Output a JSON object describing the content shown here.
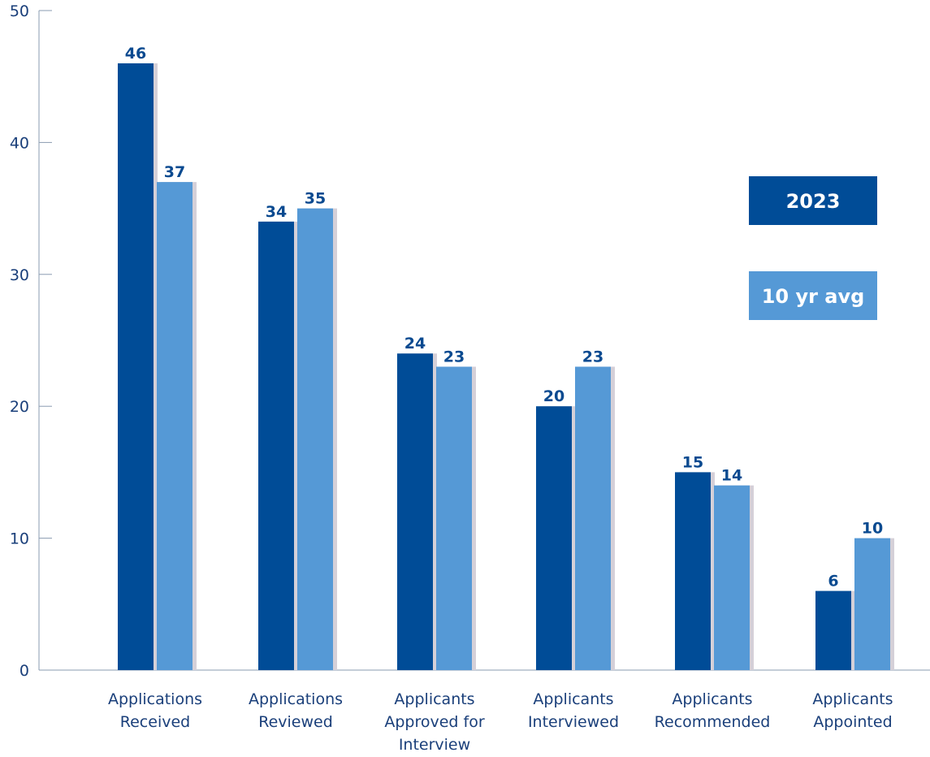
{
  "chart_data": {
    "type": "bar",
    "categories": [
      "Applications Received",
      "Applications Reviewed",
      "Applicants Approved for Interview",
      "Applicants Interviewed",
      "Applicants Recommended",
      "Applicants Appointed"
    ],
    "category_lines": [
      [
        "Applications",
        "Received"
      ],
      [
        "Applications",
        "Reviewed"
      ],
      [
        "Applicants",
        "Approved for",
        "Interview"
      ],
      [
        "Applicants",
        "Interviewed"
      ],
      [
        "Applicants",
        "Recommended"
      ],
      [
        "Applicants",
        "Appointed"
      ]
    ],
    "series": [
      {
        "name": "2023",
        "values": [
          46,
          34,
          24,
          20,
          15,
          6
        ],
        "color": "#004c97"
      },
      {
        "name": "10 yr avg",
        "values": [
          37,
          35,
          23,
          23,
          14,
          10
        ],
        "color": "#5599d6"
      }
    ],
    "ylim": [
      0,
      50
    ],
    "yticks": [
      0,
      10,
      20,
      30,
      40,
      50
    ],
    "grid": false,
    "legend_position": "right",
    "colors": {
      "axis": "#8a9bb0",
      "shadow": "#d5d0d8",
      "tick_text": "#1a3f7a",
      "value_text": "#0a4a90"
    }
  }
}
